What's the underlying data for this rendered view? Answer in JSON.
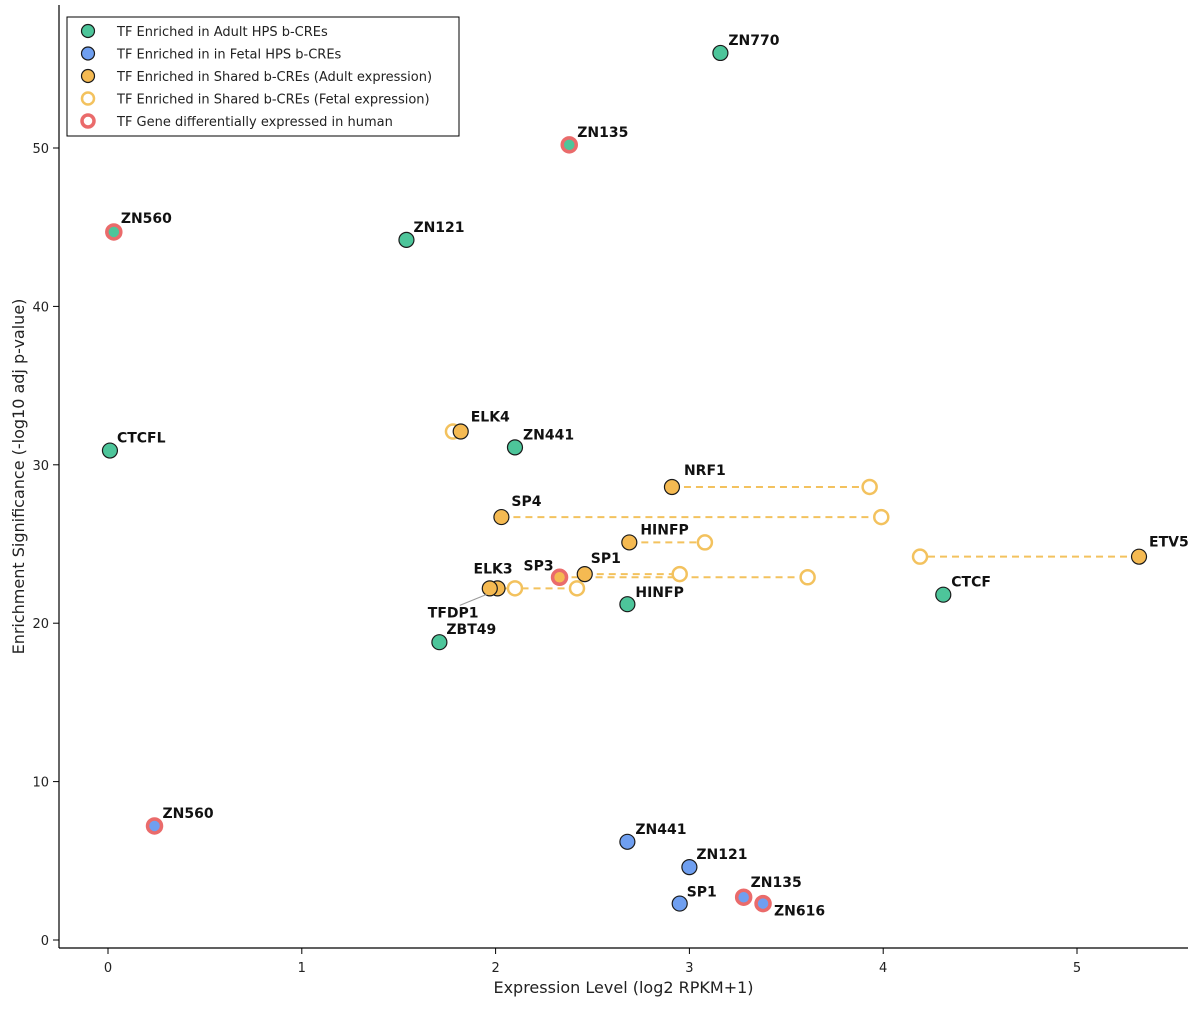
{
  "chart_data": {
    "type": "scatter",
    "xlabel": "Expression Level (log2 RPKM+1)",
    "ylabel": "Enrichment Significance (-log10 adj p-value)",
    "xlim": [
      -0.25,
      5.6
    ],
    "ylim": [
      -0.5,
      58.5
    ],
    "x_ticks": [
      0,
      1,
      2,
      3,
      4,
      5
    ],
    "y_ticks": [
      0,
      10,
      20,
      30,
      40,
      50
    ],
    "grid": false,
    "legend_position": "top-left",
    "colors": {
      "adult": "#4dc59a",
      "fetal": "#6f9ff0",
      "shared": "#f5ba52",
      "shared_fetal_ring": "#f3c25e",
      "diff_ring": "#ea6b6b",
      "outline": "#1a1a1a"
    },
    "legend": [
      {
        "key": "adult",
        "label": "TF Enriched in Adult HPS b-CREs"
      },
      {
        "key": "fetal",
        "label": "TF Enriched in in Fetal HPS b-CREs"
      },
      {
        "key": "shared",
        "label": "TF Enriched in Shared b-CREs (Adult expression)"
      },
      {
        "key": "shared_fetal",
        "label": "TF Enriched in Shared b-CREs (Fetal expression)"
      },
      {
        "key": "diff",
        "label": "TF Gene differentially expressed in human"
      }
    ],
    "adult_points": [
      {
        "label": "ZN770",
        "x": 3.16,
        "y": 56.0
      },
      {
        "label": "ZN135",
        "x": 2.38,
        "y": 50.2,
        "diff": true
      },
      {
        "label": "ZN560",
        "x": 0.03,
        "y": 44.7,
        "diff": true
      },
      {
        "label": "ZN121",
        "x": 1.54,
        "y": 44.2
      },
      {
        "label": "CTCFL",
        "x": 0.01,
        "y": 30.9
      },
      {
        "label": "ZN441",
        "x": 2.1,
        "y": 31.1
      },
      {
        "label": "HINFP",
        "x": 2.68,
        "y": 21.2
      },
      {
        "label": "CTCF",
        "x": 4.31,
        "y": 21.8
      },
      {
        "label": "ZBT49",
        "x": 1.71,
        "y": 18.8
      }
    ],
    "fetal_points": [
      {
        "label": "ZN560",
        "x": 0.24,
        "y": 7.2,
        "diff": true
      },
      {
        "label": "ZN441",
        "x": 2.68,
        "y": 6.2
      },
      {
        "label": "ZN121",
        "x": 3.0,
        "y": 4.6
      },
      {
        "label": "SP1",
        "x": 2.95,
        "y": 2.3
      },
      {
        "label": "ZN135",
        "x": 3.28,
        "y": 2.7,
        "diff": true
      },
      {
        "label": "ZN616",
        "x": 3.38,
        "y": 2.3,
        "diff": true
      }
    ],
    "shared_points": [
      {
        "label": "ELK4",
        "x_adult": 1.82,
        "x_fetal": 1.78,
        "y": 32.1
      },
      {
        "label": "NRF1",
        "x_adult": 2.91,
        "x_fetal": 3.93,
        "y": 28.6
      },
      {
        "label": "SP4",
        "x_adult": 2.03,
        "x_fetal": 3.99,
        "y": 26.7
      },
      {
        "label": "HINFP",
        "x_adult": 2.69,
        "x_fetal": 3.08,
        "y": 25.1
      },
      {
        "label": "ETV5",
        "x_adult": 5.32,
        "x_fetal": 4.19,
        "y": 24.2
      },
      {
        "label": "SP1",
        "x_adult": 2.46,
        "x_fetal": 2.95,
        "y": 23.1
      },
      {
        "label": "SP3",
        "x_adult": 2.33,
        "x_fetal": 3.61,
        "y": 22.9,
        "diff": true
      },
      {
        "label": "ELK3",
        "x_adult": 2.01,
        "x_fetal": 2.42,
        "y": 22.2
      },
      {
        "label": "TFDP1",
        "x_adult": 1.97,
        "x_fetal": 2.1,
        "y": 22.2
      }
    ]
  }
}
